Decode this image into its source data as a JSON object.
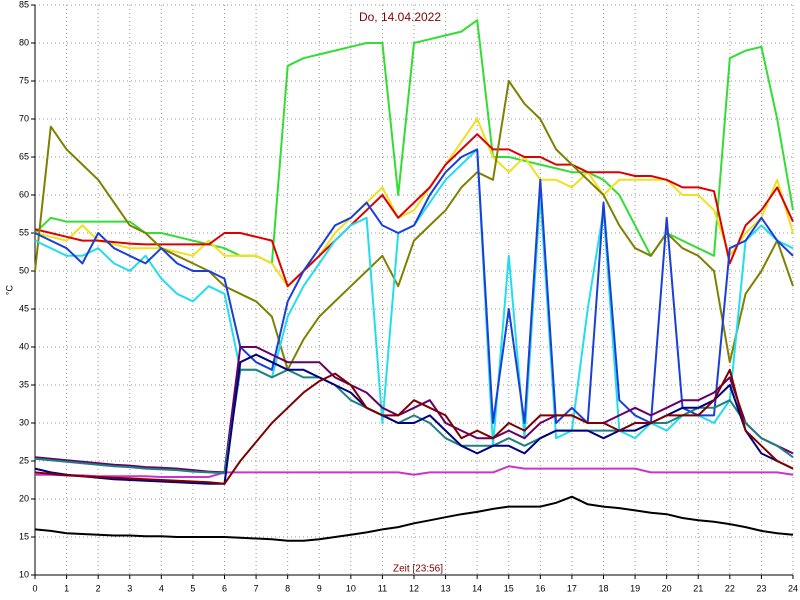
{
  "chart_data": {
    "type": "line",
    "title": "Do, 14.04.2022",
    "x_label": "Zeit [23:56]",
    "y_label": "°C",
    "grid": true,
    "xlim": [
      0,
      24
    ],
    "ylim": [
      10,
      85
    ],
    "xticks": [
      0,
      1,
      2,
      3,
      4,
      5,
      6,
      7,
      8,
      9,
      10,
      11,
      12,
      13,
      14,
      15,
      16,
      17,
      18,
      19,
      20,
      21,
      22,
      23,
      24
    ],
    "yticks": [
      10,
      15,
      20,
      25,
      30,
      35,
      40,
      45,
      50,
      55,
      60,
      65,
      70,
      75,
      80,
      85
    ],
    "x": [
      0,
      0.5,
      1,
      1.5,
      2,
      2.5,
      3,
      3.5,
      4,
      4.5,
      5,
      5.5,
      6,
      6.5,
      7,
      7.5,
      8,
      8.5,
      9,
      9.5,
      10,
      10.5,
      11,
      11.5,
      12,
      12.5,
      13,
      13.5,
      14,
      14.5,
      15,
      15.5,
      16,
      16.5,
      17,
      17.5,
      18,
      18.5,
      19,
      19.5,
      20,
      20.5,
      21,
      21.5,
      22,
      22.5,
      23,
      23.5,
      24
    ],
    "series": [
      {
        "color": "#000000",
        "values": [
          16,
          15.8,
          15.5,
          15.4,
          15.3,
          15.2,
          15.2,
          15.1,
          15.1,
          15,
          15,
          15,
          15,
          14.9,
          14.8,
          14.7,
          14.5,
          14.5,
          14.7,
          15,
          15.3,
          15.6,
          16,
          16.3,
          16.8,
          17.2,
          17.6,
          18,
          18.3,
          18.7,
          19,
          19,
          19,
          19.5,
          20.3,
          19.3,
          19,
          18.8,
          18.5,
          18.2,
          18,
          17.5,
          17.2,
          17,
          16.7,
          16.3,
          15.8,
          15.5,
          15.3
        ]
      },
      {
        "color": "#cc33cc",
        "values": [
          23.2,
          23.2,
          23.1,
          23.1,
          23,
          23,
          23,
          23,
          22.9,
          22.9,
          22.9,
          22.9,
          23.5,
          23.5,
          23.5,
          23.5,
          23.5,
          23.5,
          23.5,
          23.5,
          23.5,
          23.5,
          23.5,
          23.5,
          23.2,
          23.5,
          23.5,
          23.5,
          23.5,
          23.5,
          24.3,
          24,
          24,
          24,
          24,
          24,
          24,
          24,
          24,
          23.5,
          23.5,
          23.5,
          23.5,
          23.5,
          23.5,
          23.5,
          23.5,
          23.5,
          23.2
        ]
      },
      {
        "color": "#33dd33",
        "values": [
          55,
          57,
          56.5,
          56.5,
          56.5,
          56.5,
          56.5,
          55,
          55,
          54.5,
          54,
          53.5,
          53,
          52,
          52,
          51,
          77,
          78,
          78.5,
          79,
          79.5,
          80,
          80,
          60,
          80,
          80.5,
          81,
          81.5,
          83,
          65,
          65,
          64.5,
          64,
          63.5,
          63,
          63,
          62,
          60,
          56,
          52,
          55,
          54,
          53,
          52,
          78,
          79,
          79.5,
          70,
          58
        ]
      },
      {
        "color": "#f0e020",
        "values": [
          55,
          54.5,
          54,
          56,
          54,
          53.5,
          53,
          53,
          53,
          52.5,
          52,
          54,
          52,
          52,
          52,
          51,
          48,
          50,
          52,
          55,
          57,
          59,
          61,
          57,
          58,
          61,
          64,
          67,
          70,
          65,
          63,
          65,
          62,
          62,
          61,
          63,
          60,
          62,
          62,
          62,
          62,
          60,
          60,
          58,
          52,
          55,
          57,
          62,
          55
        ]
      },
      {
        "color": "#dd0000",
        "values": [
          55.5,
          55,
          54.5,
          54,
          54,
          53.8,
          53.6,
          53.5,
          53.5,
          53.5,
          53.5,
          53.5,
          55,
          55,
          54.5,
          54,
          48,
          50,
          52,
          54,
          56,
          58,
          60,
          57,
          59,
          61,
          64,
          66,
          68,
          66,
          66,
          65,
          65,
          64,
          64,
          63,
          63,
          63,
          62.5,
          62.5,
          62,
          61,
          61,
          60.5,
          51,
          56,
          58,
          61,
          56.5
        ]
      },
      {
        "color": "#808000",
        "values": [
          50,
          69,
          66,
          64,
          62,
          59,
          56,
          55,
          53,
          52,
          51,
          50,
          48,
          47,
          46,
          44,
          37,
          41,
          44,
          46,
          48,
          50,
          52,
          48,
          54,
          56,
          58,
          61,
          63,
          62,
          75,
          72,
          70,
          66,
          64,
          62,
          60,
          56,
          53,
          52,
          55,
          53,
          52,
          50,
          38,
          47,
          50,
          54,
          48
        ]
      },
      {
        "color": "#22ddee",
        "values": [
          54,
          53,
          52,
          52,
          53,
          51,
          50,
          52,
          49,
          47,
          46,
          48,
          47,
          37,
          37,
          36,
          44,
          48,
          51,
          54,
          56,
          57,
          30,
          55,
          56,
          59,
          62,
          64,
          66,
          27,
          52,
          28,
          60,
          28,
          29,
          45,
          58,
          29,
          28,
          30,
          29,
          31,
          31,
          30,
          33,
          54,
          56,
          54,
          53
        ]
      },
      {
        "color": "#1a3fd8",
        "values": [
          55,
          54,
          53,
          51,
          55,
          53,
          52,
          51,
          53,
          51,
          50,
          50,
          49,
          40,
          38,
          37,
          46,
          50,
          53,
          56,
          57,
          59,
          56,
          55,
          56,
          60,
          63,
          65,
          66,
          30,
          45,
          30,
          62,
          30,
          32,
          30,
          59,
          33,
          31,
          30,
          57,
          32,
          31,
          31,
          53,
          54,
          57,
          54,
          52
        ]
      },
      {
        "color": "#660066",
        "values": [
          25.5,
          25.3,
          25.1,
          24.9,
          24.7,
          24.5,
          24.4,
          24.2,
          24.1,
          24,
          23.8,
          23.6,
          23.5,
          40,
          40,
          39,
          38,
          38,
          38,
          36,
          35,
          34,
          32,
          31,
          32,
          33,
          30,
          29,
          28,
          28,
          29,
          28,
          30,
          31,
          31,
          30,
          30,
          31,
          32,
          31,
          32,
          33,
          33,
          34,
          36,
          30,
          28,
          27,
          26
        ]
      },
      {
        "color": "#208080",
        "values": [
          25.3,
          25.1,
          24.9,
          24.7,
          24.5,
          24.3,
          24.2,
          24,
          23.9,
          23.8,
          23.6,
          23.5,
          23.4,
          37,
          37,
          36,
          37,
          36,
          36,
          35,
          33,
          32,
          31,
          30,
          31,
          30,
          28,
          27,
          27,
          27,
          28,
          27,
          28,
          29,
          29,
          29,
          29,
          29,
          30,
          30,
          30,
          31,
          32,
          32,
          33,
          30,
          28,
          27,
          25.5
        ]
      },
      {
        "color": "#000080",
        "values": [
          24,
          23.5,
          23.2,
          23,
          22.8,
          22.6,
          22.5,
          22.4,
          22.3,
          22.2,
          22.1,
          22,
          22,
          38,
          39,
          38,
          37,
          37,
          36,
          35,
          34,
          32,
          31,
          30,
          30,
          31,
          29,
          27,
          26,
          27,
          27,
          26,
          28,
          29,
          29,
          29,
          28,
          29,
          29,
          30,
          31,
          32,
          32,
          33,
          35,
          29,
          26,
          25,
          24
        ]
      },
      {
        "color": "#800000",
        "values": [
          23.5,
          23.3,
          23.1,
          23,
          22.9,
          22.8,
          22.7,
          22.6,
          22.5,
          22.4,
          22.3,
          22.2,
          22,
          25,
          27.5,
          30,
          32,
          34,
          35.5,
          36.5,
          35,
          32,
          31,
          31,
          33,
          32,
          31,
          28,
          29,
          28,
          30,
          29,
          31,
          31,
          31,
          30,
          30,
          29,
          30,
          30,
          31,
          31,
          31,
          33,
          37,
          29,
          27,
          25,
          24
        ]
      }
    ]
  }
}
